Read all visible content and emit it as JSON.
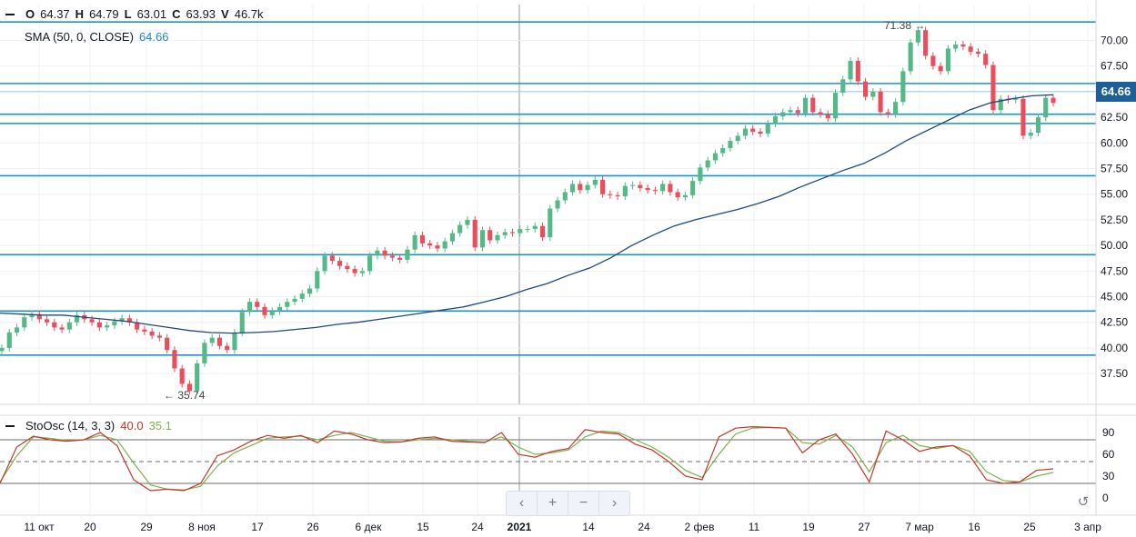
{
  "header": {
    "open_label": "O",
    "open_value": "64.37",
    "high_label": "H",
    "high_value": "64.79",
    "low_label": "L",
    "low_value": "63.01",
    "close_label": "C",
    "close_value": "63.93",
    "volume_label": "V",
    "volume_value": "46.7k",
    "sma_label": "SMA (50, 0, CLOSE)",
    "sma_value": "64.66"
  },
  "stoch_header": {
    "label": "StoOsc (14, 3, 3)",
    "k_value": "40.0",
    "d_value": "35.1"
  },
  "price_tag": "64.66",
  "annotations": {
    "high": "71.38",
    "low": "35.74"
  },
  "colors": {
    "up": "#53b987",
    "down": "#eb4d5c",
    "sma": "#1e4a7a",
    "level": "#1a95c9",
    "k": "#c0392b",
    "d": "#7fb04a"
  },
  "chart_data": {
    "type": "candlestick",
    "x_labels": [
      "11 окт",
      "20",
      "29",
      "8 ноя",
      "17",
      "26",
      "6 дек",
      "15",
      "24",
      "2021",
      "14",
      "24",
      "2 фев",
      "11",
      "19",
      "27",
      "7 мар",
      "16",
      "25",
      "3 апр"
    ],
    "y_ticks": [
      37.5,
      40.0,
      42.5,
      45.0,
      47.5,
      50.0,
      52.5,
      55.0,
      57.5,
      60.0,
      62.5,
      65.0,
      67.5,
      70.0
    ],
    "ylim": [
      34.5,
      73.5
    ],
    "horizontal_levels": [
      71.8,
      65.8,
      62.8,
      61.9,
      56.8,
      49.1,
      43.6,
      39.3
    ],
    "close": [
      40.0,
      41.5,
      42.0,
      43.0,
      43.3,
      42.8,
      42.5,
      42.0,
      41.8,
      42.5,
      43.2,
      42.8,
      42.5,
      42.0,
      42.2,
      42.6,
      42.9,
      42.5,
      41.8,
      41.6,
      41.2,
      41.0,
      39.8,
      38.0,
      36.5,
      35.8,
      38.5,
      40.5,
      41.0,
      40.2,
      39.8,
      41.5,
      43.5,
      44.5,
      44.0,
      43.2,
      43.6,
      44.0,
      44.5,
      44.8,
      45.3,
      45.8,
      47.5,
      49.0,
      48.5,
      48.0,
      47.7,
      47.3,
      47.5,
      49.0,
      49.5,
      49.0,
      48.8,
      48.6,
      49.6,
      51.0,
      50.2,
      50.0,
      49.7,
      50.4,
      51.2,
      52.0,
      52.5,
      49.8,
      51.5,
      50.5,
      51.0,
      51.3,
      51.2,
      51.6,
      51.6,
      51.9,
      50.8,
      53.6,
      54.4,
      55.2,
      56.0,
      55.4,
      55.9,
      56.4,
      55.0,
      54.9,
      54.8,
      55.8,
      55.9,
      55.6,
      55.4,
      55.3,
      56.0,
      55.2,
      54.7,
      54.9,
      56.3,
      57.6,
      58.3,
      59.0,
      59.5,
      60.2,
      60.7,
      61.4,
      61.1,
      60.9,
      61.9,
      62.6,
      63.0,
      63.2,
      62.9,
      64.4,
      63.0,
      62.8,
      62.4,
      64.9,
      66.2,
      68.0,
      66.0,
      64.5,
      65.0,
      63.0,
      62.8,
      64.0,
      67.0,
      69.8,
      71.0,
      68.5,
      67.5,
      67.0,
      69.2,
      69.6,
      69.4,
      68.9,
      68.7,
      67.6,
      63.2,
      64.3,
      64.2,
      64.3,
      60.7,
      61.0,
      62.5,
      64.4,
      63.9
    ],
    "sma": [
      43.4,
      43.3,
      43.2,
      43.2,
      43.0,
      42.8,
      42.6,
      42.3,
      42.0,
      41.7,
      41.5,
      41.45,
      41.5,
      41.6,
      41.8,
      42.0,
      42.3,
      42.5,
      42.8,
      43.1,
      43.4,
      43.7,
      44.0,
      44.5,
      45.0,
      45.7,
      46.3,
      47.1,
      47.8,
      48.8,
      50.0,
      51.0,
      51.9,
      52.5,
      53.0,
      53.5,
      54.1,
      54.8,
      55.7,
      56.5,
      57.3,
      58.0,
      59.0,
      60.2,
      61.2,
      62.2,
      63.2,
      63.9,
      64.3,
      64.6,
      64.7
    ],
    "stoch_k": [
      20,
      70,
      85,
      80,
      78,
      80,
      90,
      72,
      25,
      10,
      12,
      10,
      20,
      58,
      66,
      78,
      86,
      82,
      86,
      76,
      92,
      88,
      80,
      76,
      77,
      82,
      84,
      78,
      77,
      76,
      90,
      60,
      56,
      64,
      68,
      94,
      90,
      88,
      74,
      66,
      50,
      30,
      25,
      84,
      96,
      98,
      97,
      96,
      62,
      80,
      88,
      60,
      22,
      92,
      80,
      64,
      70,
      72,
      58,
      25,
      20,
      22,
      38,
      40
    ],
    "stoch_d": [
      22,
      58,
      84,
      82,
      79,
      80,
      86,
      80,
      48,
      18,
      12,
      11,
      16,
      44,
      62,
      72,
      82,
      84,
      85,
      80,
      86,
      90,
      84,
      78,
      77,
      80,
      82,
      80,
      78,
      77,
      84,
      70,
      60,
      62,
      66,
      84,
      92,
      90,
      80,
      70,
      56,
      38,
      28,
      60,
      88,
      96,
      97,
      96,
      76,
      74,
      86,
      70,
      36,
      76,
      86,
      72,
      68,
      72,
      64,
      36,
      24,
      22,
      30,
      35
    ],
    "stoch_y_ticks": [
      90,
      60,
      30,
      0
    ],
    "stoch_levels": [
      80,
      50,
      20
    ]
  }
}
